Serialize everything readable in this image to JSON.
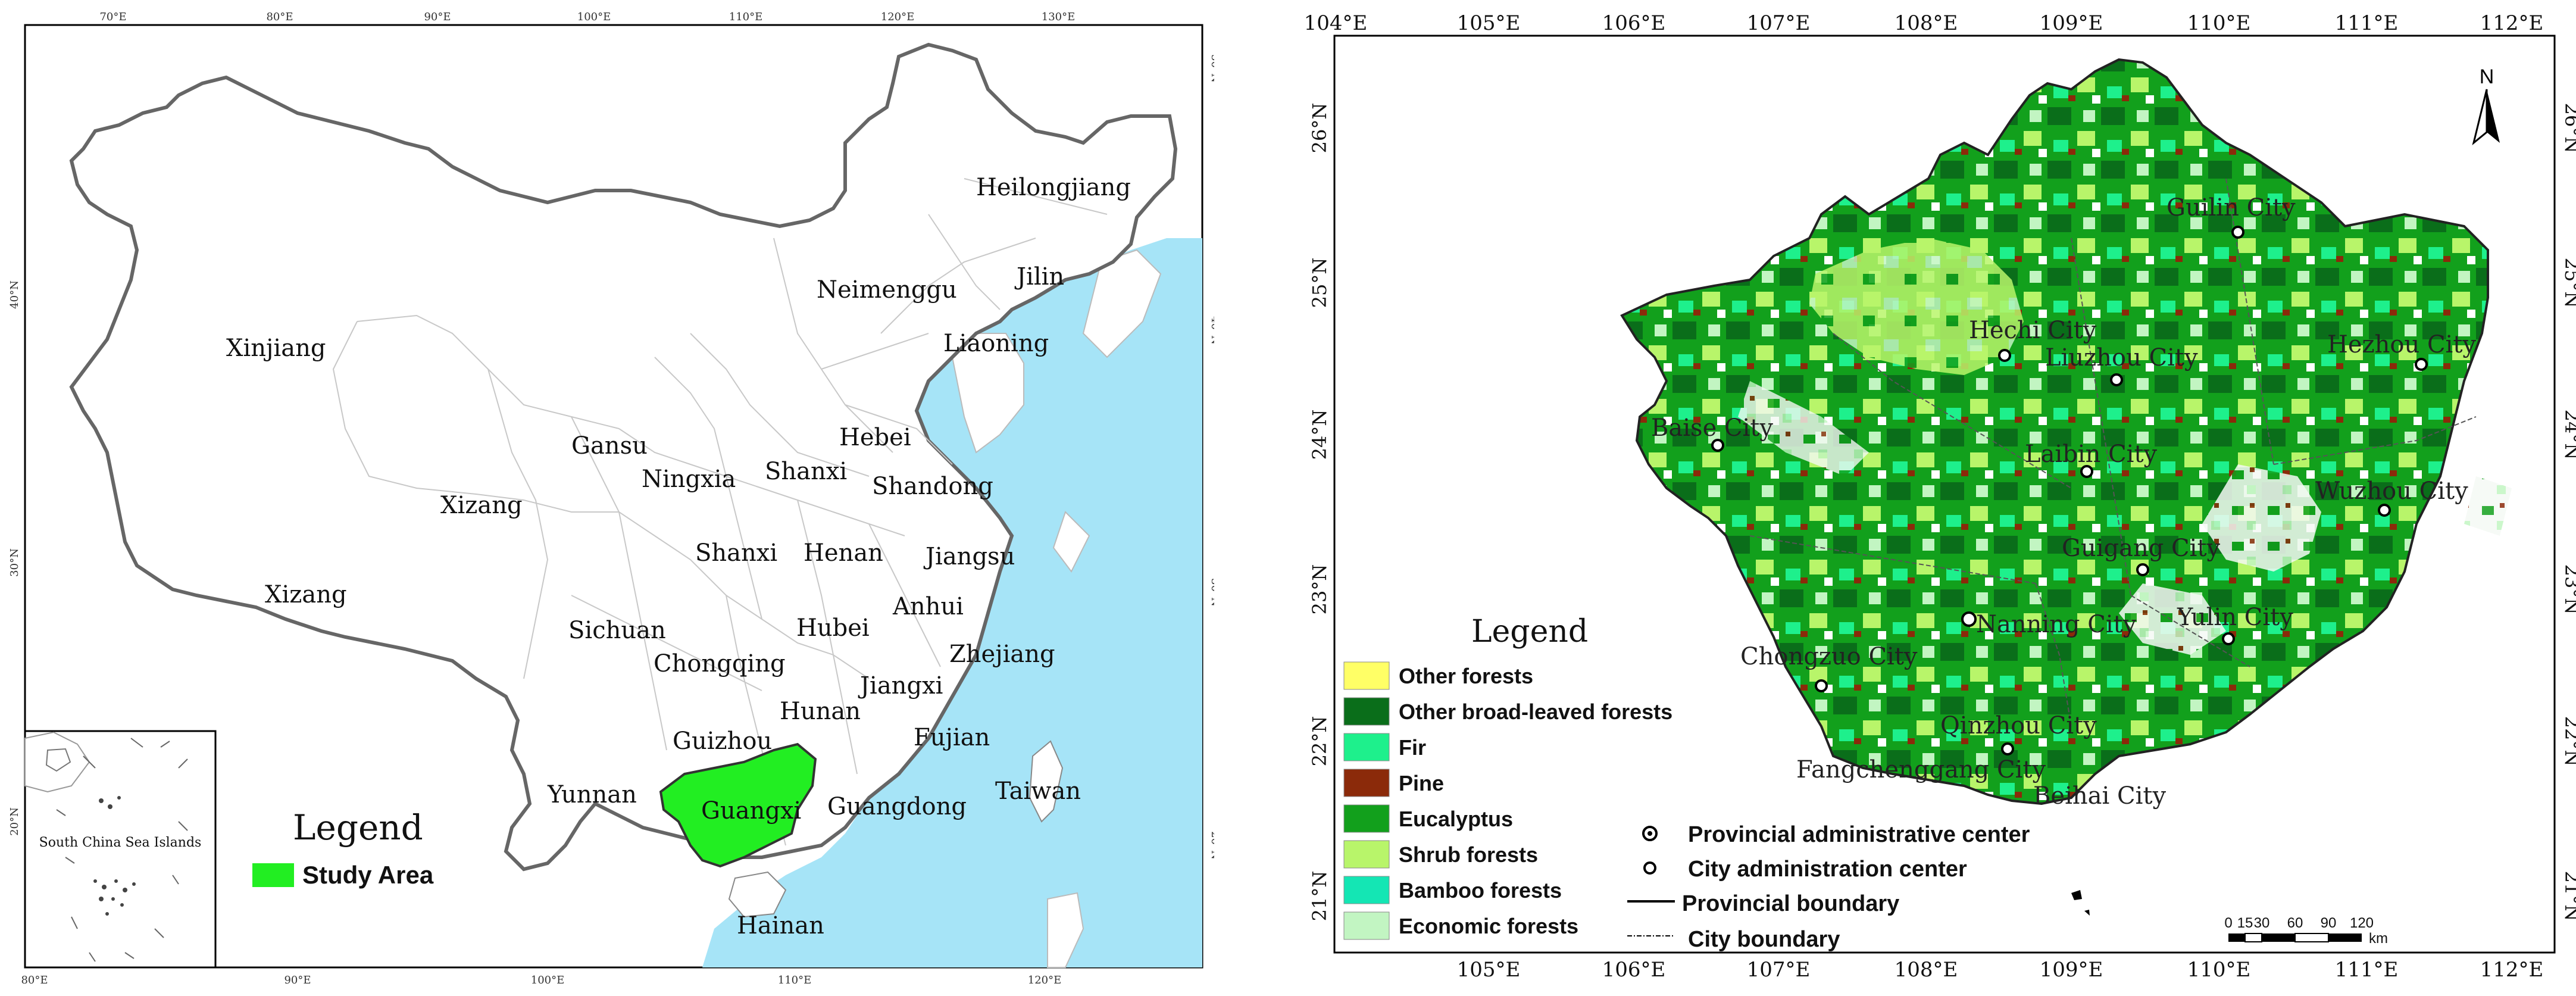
{
  "left_map": {
    "top_lon_ticks": [
      "70°E",
      "80°E",
      "90°E",
      "100°E",
      "110°E",
      "120°E",
      "130°E"
    ],
    "bottom_lon_ticks": [
      "80°E",
      "90°E",
      "100°E",
      "110°E",
      "120°E"
    ],
    "left_lat_ticks": [
      "40°N",
      "30°N",
      "20°N"
    ],
    "right_lat_ticks": [
      "50°N",
      "40°N",
      "30°N",
      "20°N"
    ],
    "provinces": [
      "Heilongjiang",
      "Jilin",
      "Neimenggu",
      "Liaoning",
      "Xinjiang",
      "Hebei",
      "Gansu",
      "Ningxia",
      "Shanxi",
      "Shandong",
      "Xizang",
      "Shanxi",
      "Henan",
      "Jiangsu",
      "Xizang",
      "Anhui",
      "Sichuan",
      "Hubei",
      "Zhejiang",
      "Chongqing",
      "Jiangxi",
      "Hunan",
      "Guizhou",
      "Fujian",
      "Yunnan",
      "Guangxi",
      "Guangdong",
      "Taiwan",
      "Hainan"
    ],
    "inset_label": "South China Sea Islands",
    "legend_title": "Legend",
    "legend_item": "Study Area",
    "study_area_color": "#22ee22",
    "sea_color": "#a6e4f7"
  },
  "right_map": {
    "lon_ticks": [
      "104°E",
      "105°E",
      "106°E",
      "107°E",
      "108°E",
      "109°E",
      "110°E",
      "111°E",
      "112°E"
    ],
    "bottom_lon_ticks": [
      "105°E",
      "106°E",
      "107°E",
      "108°E",
      "109°E",
      "110°E",
      "111°E",
      "112°E"
    ],
    "lat_ticks": [
      "26°N",
      "25°N",
      "24°N",
      "23°N",
      "22°N",
      "21°N"
    ],
    "north_label": "N",
    "cities": [
      "Guilin City",
      "Hechi City",
      "Liuzhou City",
      "Hezhou City",
      "Baise City",
      "Laibin City",
      "Wuzhou City",
      "Guigang City",
      "Nanning City",
      "Yulin City",
      "Chongzuo City",
      "Qinzhou City",
      "Fangchenggang City",
      "Beihai City"
    ],
    "legend_title": "Legend",
    "forest_classes": [
      {
        "label": "Other forests",
        "color": "#ffff66"
      },
      {
        "label": "Other broad-leaved forests",
        "color": "#0a6e1a"
      },
      {
        "label": "Fir",
        "color": "#1ef08c"
      },
      {
        "label": "Pine",
        "color": "#8b2a0a"
      },
      {
        "label": "Eucalyptus",
        "color": "#12a01c"
      },
      {
        "label": "Shrub forests",
        "color": "#b8f56a"
      },
      {
        "label": "Bamboo forests",
        "color": "#14e6b4"
      },
      {
        "label": "Economic forests",
        "color": "#c2f5c2"
      }
    ],
    "symbols": [
      "Provincial administrative center",
      "City administration center",
      "Provincial boundary",
      "City boundary"
    ],
    "scale_ticks": [
      "0",
      "15",
      "30",
      "60",
      "90",
      "120"
    ],
    "scale_unit": "km"
  }
}
